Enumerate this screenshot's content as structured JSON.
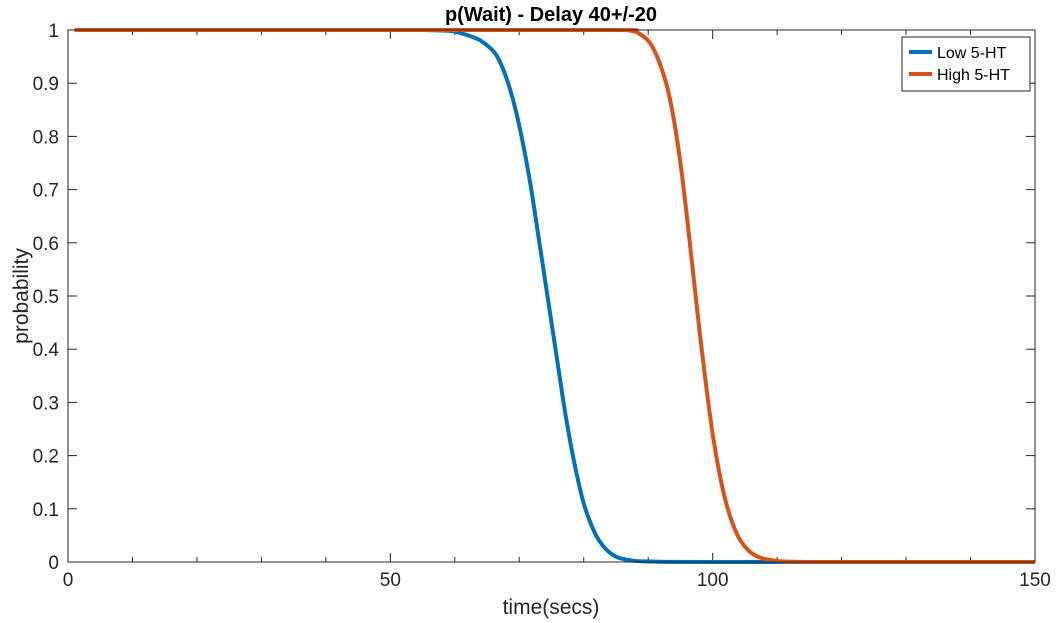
{
  "chart_data": {
    "type": "line",
    "title": "p(Wait) - Delay 40+/-20",
    "xlabel": "time(secs)",
    "ylabel": "probability",
    "xlim": [
      0,
      150
    ],
    "ylim": [
      0,
      1
    ],
    "xticks": [
      0,
      50,
      100,
      150
    ],
    "xtick_labels": [
      "0",
      "50",
      "100",
      "150"
    ],
    "yticks": [
      0,
      0.1,
      0.2,
      0.3,
      0.4,
      0.5,
      0.6,
      0.7,
      0.8,
      0.9,
      1
    ],
    "ytick_labels": [
      "0",
      "0.1",
      "0.2",
      "0.3",
      "0.4",
      "0.5",
      "0.6",
      "0.7",
      "0.8",
      "0.9",
      "1"
    ],
    "grid": false,
    "legend_position": "top-right",
    "series": [
      {
        "name": "Low 5-HT",
        "color": "#0072BD",
        "x": [
          1,
          50,
          55,
          58,
          60,
          62,
          64,
          66,
          67,
          68,
          69,
          70,
          71,
          72,
          73,
          74,
          75,
          76,
          77,
          78,
          79,
          80,
          81,
          82,
          83,
          84,
          85,
          86,
          88,
          90,
          93,
          100,
          120,
          150
        ],
        "y": [
          1,
          1,
          1,
          0.999,
          0.997,
          0.99,
          0.98,
          0.96,
          0.94,
          0.91,
          0.87,
          0.82,
          0.76,
          0.69,
          0.61,
          0.53,
          0.45,
          0.37,
          0.29,
          0.22,
          0.16,
          0.11,
          0.075,
          0.048,
          0.03,
          0.018,
          0.01,
          0.006,
          0.002,
          0.001,
          0.0003,
          0,
          0,
          0
        ]
      },
      {
        "name": "High 5-HT",
        "color": "#D95319",
        "x": [
          1,
          50,
          85,
          87,
          88,
          89,
          90,
          91,
          92,
          93,
          94,
          95,
          96,
          97,
          98,
          99,
          100,
          101,
          102,
          103,
          104,
          105,
          106,
          107,
          108,
          110,
          112,
          115,
          120,
          150
        ],
        "y": [
          1,
          1,
          1,
          0.999,
          0.997,
          0.99,
          0.98,
          0.96,
          0.93,
          0.89,
          0.83,
          0.75,
          0.65,
          0.54,
          0.43,
          0.33,
          0.24,
          0.17,
          0.115,
          0.075,
          0.047,
          0.029,
          0.017,
          0.01,
          0.006,
          0.002,
          0.0007,
          0.0001,
          0,
          0
        ]
      }
    ]
  }
}
